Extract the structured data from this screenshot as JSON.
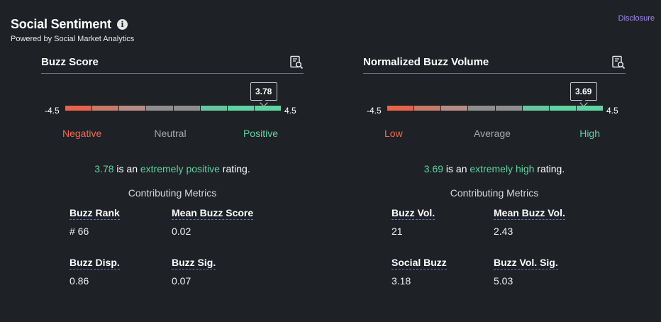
{
  "header": {
    "title": "Social Sentiment",
    "info_glyph": "i",
    "subtitle": "Powered by Social Market Analytics",
    "disclosure": "Disclosure"
  },
  "colors": {
    "negative": "#f06a4d",
    "neutral": "#a8a8a8",
    "positive": "#5fd3a0",
    "segments": [
      "#e8634a",
      "#c97a66",
      "#b88c84",
      "#8e8e8e",
      "#8e8e8e",
      "#66c79f",
      "#5fd3a0",
      "#5fd3a0"
    ]
  },
  "panels": [
    {
      "title": "Buzz Score",
      "icon": "document-search-icon",
      "min_label": "-4.5",
      "max_label": "4.5",
      "min": -4.5,
      "max": 4.5,
      "value": 3.78,
      "value_label": "3.78",
      "scale_low": "Negative",
      "scale_mid": "Neutral",
      "scale_high": "Positive",
      "rating_value": "3.78",
      "rating_mid": " is an ",
      "rating_quality": "extremely positive",
      "rating_end": " rating.",
      "contributing": "Contributing Metrics",
      "metrics": [
        {
          "label": "Buzz Rank",
          "value": "# 66"
        },
        {
          "label": "Mean Buzz Score",
          "value": "0.02"
        },
        {
          "label": "Buzz Disp.",
          "value": "0.86"
        },
        {
          "label": "Buzz Sig.",
          "value": "0.07"
        }
      ]
    },
    {
      "title": "Normalized Buzz Volume",
      "icon": "document-search-icon",
      "min_label": "-4.5",
      "max_label": "4.5",
      "min": -4.5,
      "max": 4.5,
      "value": 3.69,
      "value_label": "3.69",
      "scale_low": "Low",
      "scale_mid": "Average",
      "scale_high": "High",
      "rating_value": "3.69",
      "rating_mid": " is an ",
      "rating_quality": "extremely high",
      "rating_end": " rating.",
      "contributing": "Contributing Metrics",
      "metrics": [
        {
          "label": "Buzz Vol.",
          "value": "21"
        },
        {
          "label": "Mean Buzz Vol.",
          "value": "2.43"
        },
        {
          "label": "Social Buzz",
          "value": "3.18"
        },
        {
          "label": "Buzz Vol. Sig.",
          "value": "5.03"
        }
      ]
    }
  ]
}
